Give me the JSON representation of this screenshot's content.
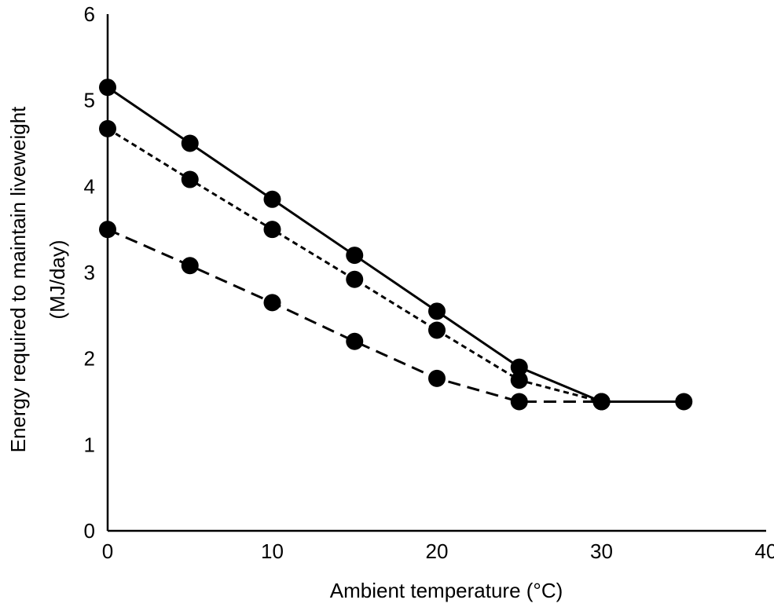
{
  "chart_data": {
    "type": "line",
    "title": "",
    "xlabel": "Ambient temperature (°C)",
    "ylabel_line1": "Energy required to maintain liveweight",
    "ylabel_line2": "(MJ/day)",
    "xlim": [
      0,
      40
    ],
    "ylim": [
      0,
      6
    ],
    "xticks": [
      0,
      10,
      20,
      30,
      40
    ],
    "yticks": [
      0,
      1,
      2,
      3,
      4,
      5,
      6
    ],
    "grid": false,
    "legend": "none",
    "series": [
      {
        "style": "solid",
        "x": [
          0,
          5,
          10,
          15,
          20,
          25,
          30,
          35
        ],
        "y": [
          5.15,
          4.5,
          3.85,
          3.2,
          2.55,
          1.9,
          1.5,
          1.5
        ]
      },
      {
        "style": "dotted",
        "x": [
          0,
          5,
          10,
          15,
          20,
          25,
          30
        ],
        "y": [
          4.67,
          4.08,
          3.5,
          2.92,
          2.33,
          1.75,
          1.5
        ]
      },
      {
        "style": "dashed",
        "x": [
          0,
          5,
          10,
          15,
          20,
          25,
          30
        ],
        "y": [
          3.5,
          3.08,
          2.65,
          2.2,
          1.77,
          1.5,
          1.5
        ]
      }
    ],
    "colors": {
      "line": "#000000",
      "marker": "#000000"
    }
  }
}
